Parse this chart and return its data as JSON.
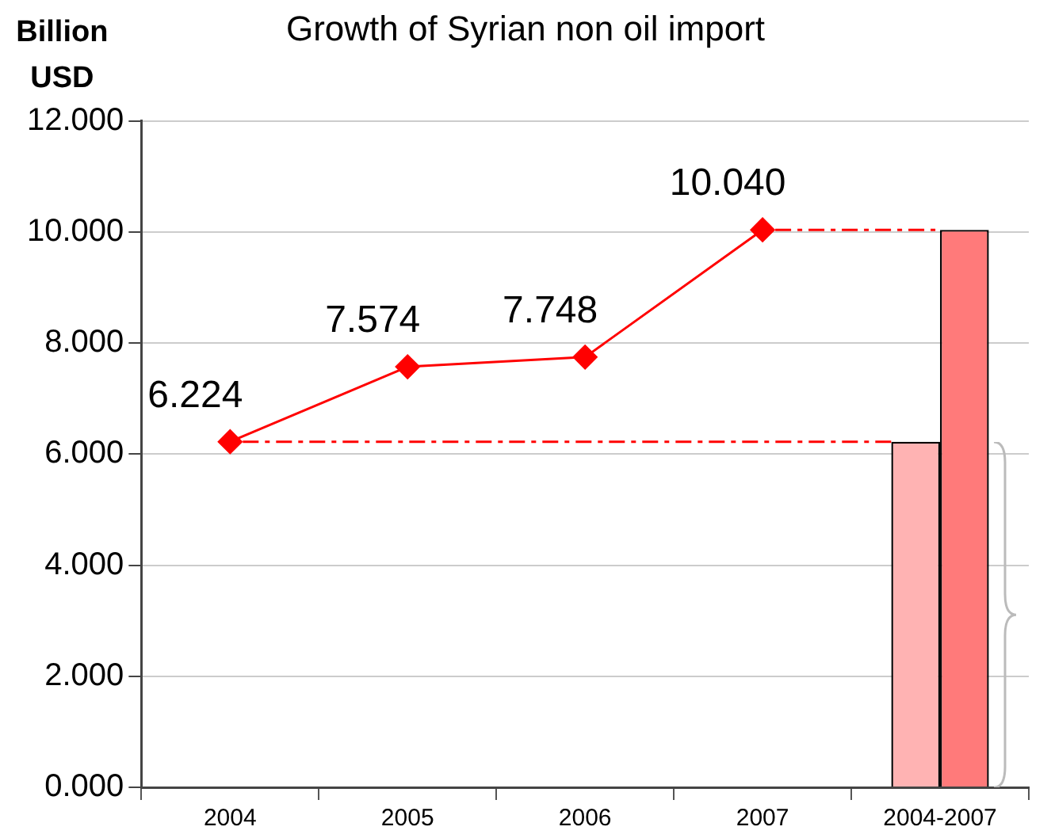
{
  "chart_data": {
    "type": "line",
    "title": "Growth of Syrian non oil import",
    "ylabel": "Billion USD",
    "categories": [
      "2004",
      "2005",
      "2006",
      "2007",
      "2004-2007"
    ],
    "series": [
      {
        "color": "#ff0000",
        "values": [
          6.224,
          7.574,
          7.748,
          10.04,
          null
        ],
        "value_labels": [
          "6.224",
          "7.574",
          "7.748",
          "10.040",
          null
        ],
        "marker": "diamond",
        "line_style": "solid"
      },
      {
        "type": "bar",
        "color": "#ffb3b3",
        "values": [
          null,
          null,
          null,
          null,
          6.224
        ]
      },
      {
        "type": "bar",
        "color": "#ff7a7a",
        "values": [
          null,
          null,
          null,
          null,
          10.04
        ]
      }
    ],
    "ylim": [
      0,
      12
    ],
    "yticks": [
      {
        "value": 0,
        "label": "0.000"
      },
      {
        "value": 2,
        "label": "2.000"
      },
      {
        "value": 4,
        "label": "4.000"
      },
      {
        "value": 6,
        "label": "6.000"
      },
      {
        "value": 8,
        "label": "8.000"
      },
      {
        "value": 10,
        "label": "10.000"
      },
      {
        "value": 12,
        "label": "12.000"
      }
    ],
    "ref_lines": [
      {
        "axis": "y",
        "value": 6.224,
        "color": "#ff0000",
        "line_style": "dashdot"
      },
      {
        "axis": "y",
        "value": 10.04,
        "color": "#ff0000",
        "line_style": "dashdot"
      }
    ],
    "grid": "y",
    "legend": false
  }
}
